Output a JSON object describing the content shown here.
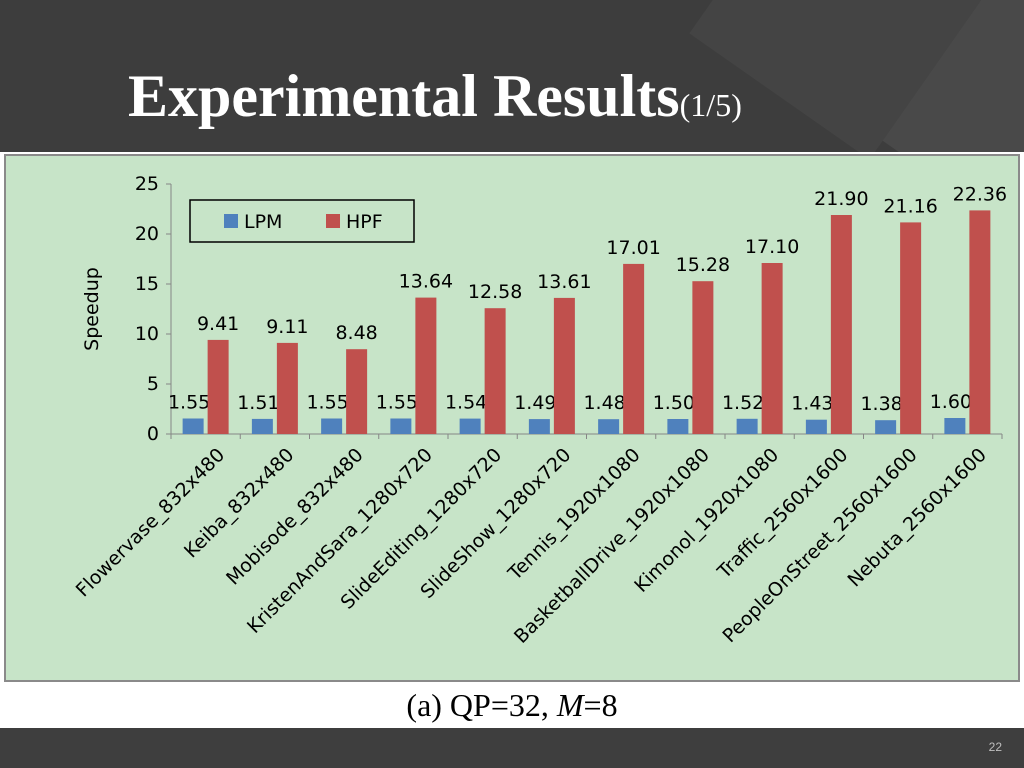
{
  "slide": {
    "title": "Experimental Results",
    "title_suffix": "(1/5)",
    "caption_prefix": "(a) QP=32, ",
    "caption_var": "M",
    "caption_suffix": "=8",
    "page_number": "22"
  },
  "colors": {
    "background": "#3d3d3d",
    "chart_background": "#c7e4c8",
    "lpm": "#4f81bd",
    "hpf": "#c0504d"
  },
  "chart_data": {
    "type": "bar",
    "title": "",
    "xlabel": "",
    "ylabel": "Speedup",
    "ylim": [
      0,
      25
    ],
    "yticks": [
      0,
      5,
      10,
      15,
      20,
      25
    ],
    "grid": false,
    "legend_position": "top-left",
    "categories": [
      "Flowervase_832x480",
      "Keiba_832x480",
      "Mobisode_832x480",
      "KristenAndSara_1280x720",
      "SlideEditing_1280x720",
      "SlideShow_1280x720",
      "Tennis_1920x1080",
      "BasketballDrive_1920x1080",
      "Kimonol_1920x1080",
      "Traffic_2560x1600",
      "PeopleOnStreet_2560x1600",
      "Nebuta_2560x1600"
    ],
    "series": [
      {
        "name": "LPM",
        "values": [
          1.55,
          1.51,
          1.55,
          1.55,
          1.54,
          1.49,
          1.48,
          1.5,
          1.52,
          1.43,
          1.38,
          1.6
        ],
        "labels": [
          "1.55",
          "1.51",
          "1.55",
          "1.55",
          "1.54",
          "1.49",
          "1.48",
          "1.50",
          "1.52",
          "1.43",
          "1.38",
          "1.60"
        ]
      },
      {
        "name": "HPF",
        "values": [
          9.41,
          9.11,
          8.48,
          13.64,
          12.58,
          13.61,
          17.01,
          15.28,
          17.1,
          21.9,
          21.16,
          22.36
        ],
        "labels": [
          "9.41",
          "9.11",
          "8.48",
          "13.64",
          "12.58",
          "13.61",
          "17.01",
          "15.28",
          "17.10",
          "21.90",
          "21.16",
          "22.36"
        ]
      }
    ]
  }
}
